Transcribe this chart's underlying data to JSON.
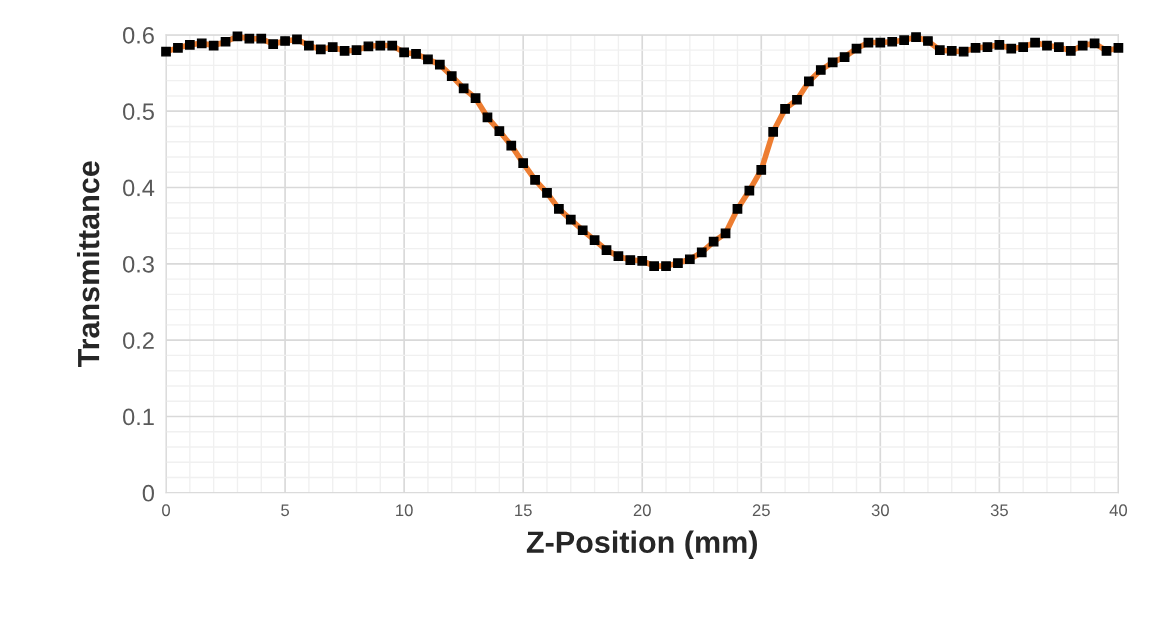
{
  "chart_data": {
    "type": "line",
    "xlabel": "Z-Position (mm)",
    "ylabel": "Transmittance",
    "x": [
      0,
      0.5,
      1,
      1.5,
      2,
      2.5,
      3,
      3.5,
      4,
      4.5,
      5,
      5.5,
      6,
      6.5,
      7,
      7.5,
      8,
      8.5,
      9,
      9.5,
      10,
      10.5,
      11,
      11.5,
      12,
      12.5,
      13,
      13.5,
      14,
      14.5,
      15,
      15.5,
      16,
      16.5,
      17,
      17.5,
      18,
      18.5,
      19,
      19.5,
      20,
      20.5,
      21,
      21.5,
      22,
      22.5,
      23,
      23.5,
      24,
      24.5,
      25,
      25.5,
      26,
      26.5,
      27,
      27.5,
      28,
      28.5,
      29,
      29.5,
      30,
      30.5,
      31,
      31.5,
      32,
      32.5,
      33,
      33.5,
      34,
      34.5,
      35,
      35.5,
      36,
      36.5,
      37,
      37.5,
      38,
      38.5,
      39,
      39.5,
      40
    ],
    "series": [
      {
        "color": "#ed7d31",
        "values": [
          0.578,
          0.583,
          0.587,
          0.589,
          0.586,
          0.591,
          0.598,
          0.595,
          0.595,
          0.588,
          0.592,
          0.594,
          0.586,
          0.581,
          0.584,
          0.579,
          0.58,
          0.585,
          0.586,
          0.586,
          0.577,
          0.575,
          0.568,
          0.561,
          0.546,
          0.53,
          0.517,
          0.492,
          0.474,
          0.455,
          0.432,
          0.41,
          0.393,
          0.372,
          0.358,
          0.344,
          0.331,
          0.318,
          0.31,
          0.305,
          0.304,
          0.297,
          0.297,
          0.301,
          0.306,
          0.315,
          0.329,
          0.34,
          0.372,
          0.396,
          0.423,
          0.473,
          0.503,
          0.515,
          0.539,
          0.554,
          0.564,
          0.571,
          0.582,
          0.59,
          0.59,
          0.591,
          0.593,
          0.597,
          0.592,
          0.58,
          0.579,
          0.578,
          0.583,
          0.584,
          0.587,
          0.582,
          0.584,
          0.59,
          0.586,
          0.584,
          0.579,
          0.586,
          0.589,
          0.579,
          0.583
        ]
      }
    ],
    "marker": "square",
    "line_style": "solid",
    "xlim": [
      0,
      40
    ],
    "xticks": [
      0,
      5,
      10,
      15,
      20,
      25,
      30,
      35,
      40
    ],
    "ylim": [
      0,
      0.6
    ],
    "yticks": [
      0,
      0.1,
      0.2,
      0.3,
      0.4,
      0.5,
      0.6
    ],
    "grid": true,
    "legend": false
  }
}
